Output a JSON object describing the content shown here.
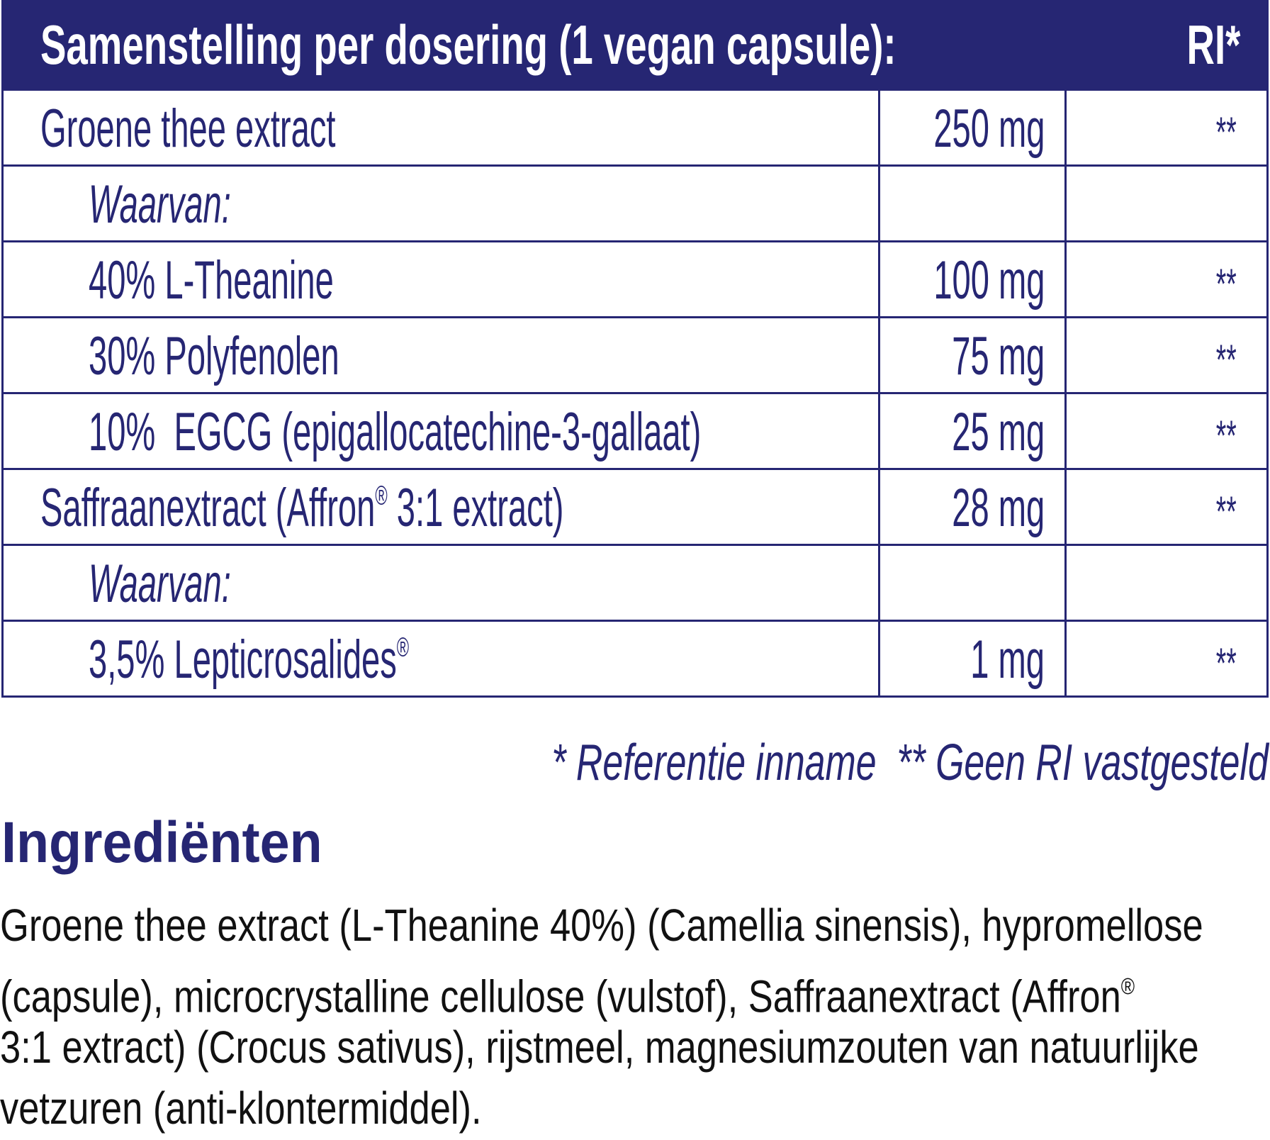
{
  "table": {
    "header": "Samenstelling per dosering (1 vegan capsule):",
    "ri_header": "RI*",
    "rows": [
      {
        "name": "Groene thee extract",
        "amount": "250 mg",
        "ri": "**"
      },
      {
        "name": "Waarvan:",
        "amount": "",
        "ri": ""
      },
      {
        "name": "40% L-Theanine",
        "amount": "100 mg",
        "ri": "**"
      },
      {
        "name": "30% Polyfenolen",
        "amount": "75 mg",
        "ri": "**"
      },
      {
        "name": "10%  EGCG (epigallocatechine-3-gallaat)",
        "amount": "25 mg",
        "ri": "**"
      },
      {
        "name": "Saffraanextract (Affron",
        "reg": "®",
        "name_suffix": " 3:1 extract)",
        "amount": "28 mg",
        "ri": "**"
      },
      {
        "name": "Waarvan:",
        "amount": "",
        "ri": ""
      },
      {
        "name": "3,5% Lepticrosalides",
        "reg": "®",
        "amount": "1 mg",
        "ri": "**"
      }
    ]
  },
  "footnote": {
    "ri": "* Referentie inname",
    "no_ri": "** Geen RI vastgesteld"
  },
  "ingredients": {
    "title": "Ingrediënten",
    "lines": [
      "Groene thee extract (L-Theanine 40%) (Camellia sinensis), hypromellose",
      "(capsule), microcrystalline cellulose (vulstof), Saffraanextract (Affron",
      "3:1 extract) (Crocus sativus), rijstmeel, magnesiumzouten van natuurlijke",
      "vetzuren (anti-klontermiddel)."
    ],
    "reg": "®"
  },
  "colors": {
    "brand": "#262673",
    "text": "#111111"
  }
}
